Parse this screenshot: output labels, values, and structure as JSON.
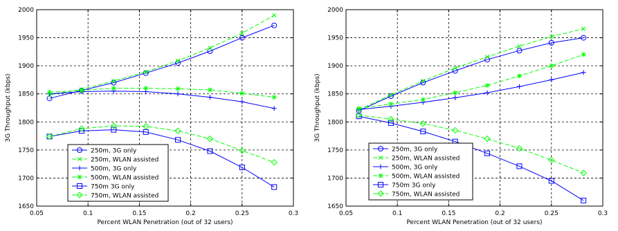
{
  "chart_data": [
    {
      "type": "line",
      "title": "",
      "xlabel": "Percent WLAN Penetration (out of 32 users)",
      "ylabel": "3G Throughput (kbps)",
      "xlim": [
        0.05,
        0.3
      ],
      "ylim": [
        1650,
        2000
      ],
      "xticks": [
        "0.05",
        "0.1",
        "0.15",
        "0.2",
        "0.25",
        "0.3"
      ],
      "yticks": [
        "1650",
        "1700",
        "1750",
        "1800",
        "1850",
        "1900",
        "1950",
        "2000"
      ],
      "grid": true,
      "legend_position": "lower-left",
      "x": [
        0.0625,
        0.09375,
        0.125,
        0.15625,
        0.1875,
        0.21875,
        0.25,
        0.28125
      ],
      "series": [
        {
          "name": "250m, 3G only",
          "color": "#0000ff",
          "dash": false,
          "marker": "circle",
          "values": [
            1842,
            1856,
            1870,
            1887,
            1905,
            1926,
            1950,
            1972
          ]
        },
        {
          "name": "250m, WLAN assisted",
          "color": "#00ff00",
          "dash": true,
          "marker": "x",
          "values": [
            1848,
            1858,
            1873,
            1889,
            1909,
            1932,
            1958,
            1990
          ]
        },
        {
          "name": "500m, 3G only",
          "color": "#0000ff",
          "dash": false,
          "marker": "plus",
          "values": [
            1850,
            1854,
            1855,
            1854,
            1850,
            1844,
            1836,
            1824
          ]
        },
        {
          "name": "500m, WLAN assisted",
          "color": "#00ff00",
          "dash": true,
          "marker": "star",
          "values": [
            1853,
            1856,
            1860,
            1860,
            1859,
            1857,
            1851,
            1844
          ]
        },
        {
          "name": "750m 3G only",
          "color": "#0000ff",
          "dash": false,
          "marker": "square",
          "values": [
            1774,
            1784,
            1786,
            1782,
            1768,
            1748,
            1719,
            1684
          ]
        },
        {
          "name": "750m, WLAN assisted",
          "color": "#00ff00",
          "dash": true,
          "marker": "diamond",
          "values": [
            1774,
            1788,
            1793,
            1792,
            1784,
            1770,
            1749,
            1728
          ]
        }
      ]
    },
    {
      "type": "line",
      "title": "",
      "xlabel": "Percent WLAN Penetration (out of 32 users)",
      "ylabel": "3G Throughput (kbps)",
      "xlim": [
        0.05,
        0.3
      ],
      "ylim": [
        1650,
        2000
      ],
      "xticks": [
        "0.05",
        "0.1",
        "0.15",
        "0.2",
        "0.25",
        "0.3"
      ],
      "yticks": [
        "1650",
        "1700",
        "1750",
        "1800",
        "1850",
        "1900",
        "1950",
        "2000"
      ],
      "grid": true,
      "legend_position": "lower-left",
      "x": [
        0.0625,
        0.09375,
        0.125,
        0.15625,
        0.1875,
        0.21875,
        0.25,
        0.28125
      ],
      "series": [
        {
          "name": "250m, 3G only",
          "color": "#0000ff",
          "dash": false,
          "marker": "circle",
          "values": [
            1820,
            1846,
            1870,
            1891,
            1911,
            1927,
            1941,
            1950
          ]
        },
        {
          "name": "250m, WLAN assisted",
          "color": "#00ff00",
          "dash": true,
          "marker": "x",
          "values": [
            1822,
            1848,
            1873,
            1896,
            1916,
            1935,
            1952,
            1966
          ]
        },
        {
          "name": "500m, 3G only",
          "color": "#0000ff",
          "dash": false,
          "marker": "plus",
          "values": [
            1822,
            1828,
            1835,
            1843,
            1852,
            1863,
            1875,
            1888
          ]
        },
        {
          "name": "500m, WLAN assisted",
          "color": "#00ff00",
          "dash": true,
          "marker": "star",
          "values": [
            1824,
            1832,
            1840,
            1852,
            1865,
            1882,
            1900,
            1920
          ]
        },
        {
          "name": "750m 3G only",
          "color": "#0000ff",
          "dash": false,
          "marker": "square",
          "values": [
            1810,
            1798,
            1783,
            1765,
            1744,
            1721,
            1695,
            1660
          ]
        },
        {
          "name": "750m, WLAN assisted",
          "color": "#00ff00",
          "dash": true,
          "marker": "diamond",
          "values": [
            1812,
            1805,
            1797,
            1785,
            1770,
            1753,
            1732,
            1709
          ]
        }
      ]
    }
  ]
}
